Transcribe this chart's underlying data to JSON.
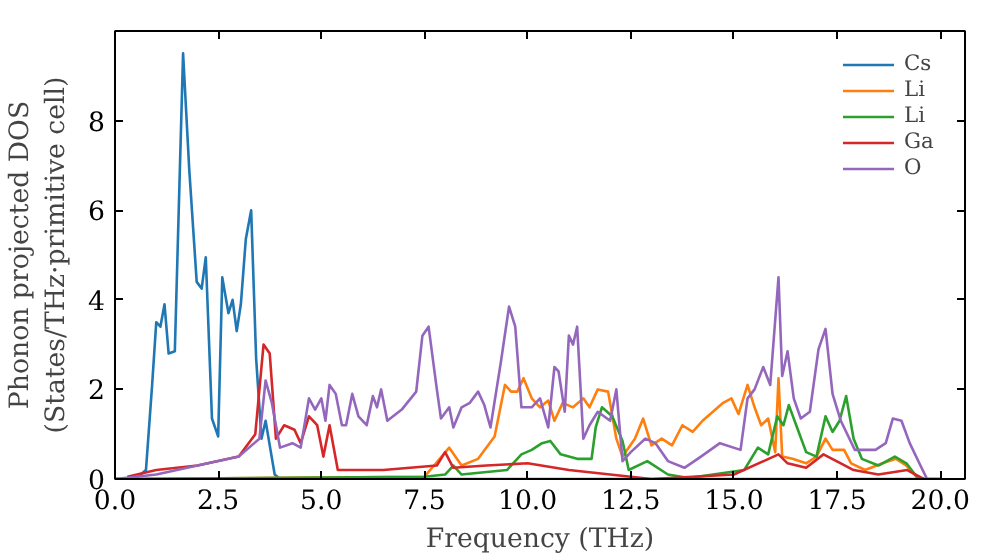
{
  "chart_data": {
    "type": "line",
    "xlabel": "Frequency (THz)",
    "ylabel": "Phonon projected DOS\n(States/THz·primitive cell)",
    "xlim": [
      0,
      20.6
    ],
    "ylim": [
      0,
      10
    ],
    "xticks": [
      {
        "value": 0,
        "label": "0.0"
      },
      2.5,
      {
        "value": 5,
        "label": "5.0"
      },
      7.5,
      {
        "value": 10,
        "label": "10.0"
      },
      12.5,
      {
        "value": 15,
        "label": "15.0"
      },
      17.5,
      {
        "value": 20,
        "label": "20.0"
      }
    ],
    "yticks": [
      0,
      2,
      4,
      6,
      8
    ],
    "grid": false,
    "legend": "top right",
    "marker": "none",
    "line_style": "solid",
    "series": [
      {
        "name": "Cs",
        "color": "#1f77b4",
        "x": [
          0,
          0.5,
          0.75,
          0.9,
          1.0,
          1.1,
          1.2,
          1.3,
          1.45,
          1.65,
          1.8,
          1.98,
          2.1,
          2.2,
          2.35,
          2.5,
          2.6,
          2.75,
          2.85,
          2.95,
          3.05,
          3.17,
          3.3,
          3.42,
          3.55,
          3.65,
          3.75,
          3.87,
          4.0,
          20
        ],
        "values": [
          0,
          0,
          0.2,
          2.1,
          3.5,
          3.4,
          3.9,
          2.8,
          2.85,
          9.5,
          6.9,
          4.4,
          4.25,
          4.95,
          1.35,
          0.95,
          4.5,
          3.7,
          4.0,
          3.3,
          3.9,
          5.35,
          6.0,
          2.7,
          0.9,
          1.3,
          0.75,
          0.1,
          0,
          0
        ]
      },
      {
        "name": "Li",
        "color": "#ff7f0e",
        "x": [
          0,
          7.5,
          8.1,
          8.4,
          8.8,
          9.2,
          9.45,
          9.6,
          9.75,
          9.9,
          10.1,
          10.3,
          10.5,
          10.65,
          10.85,
          11.1,
          11.35,
          11.5,
          11.7,
          11.95,
          12.15,
          12.3,
          12.6,
          12.8,
          13.0,
          13.25,
          13.5,
          13.75,
          14.0,
          14.24,
          14.49,
          14.74,
          14.94,
          15.11,
          15.33,
          15.5,
          15.66,
          15.83,
          16.0,
          16.08,
          16.17,
          16.42,
          16.75,
          17.0,
          17.22,
          17.39,
          17.67,
          17.84,
          18.18,
          18.6,
          18.93,
          19.18,
          19.43,
          19.6,
          20
        ],
        "values": [
          0,
          0.05,
          0.7,
          0.3,
          0.45,
          0.95,
          2.1,
          1.95,
          1.95,
          2.25,
          1.8,
          1.6,
          1.75,
          1.3,
          1.7,
          1.6,
          1.8,
          1.6,
          2.0,
          1.95,
          0.9,
          0.5,
          0.9,
          1.35,
          0.75,
          0.9,
          0.75,
          1.2,
          1.05,
          1.3,
          1.5,
          1.7,
          1.8,
          1.45,
          2.1,
          1.6,
          1.2,
          1.35,
          0.6,
          2.25,
          0.5,
          0.45,
          0.35,
          0.5,
          0.9,
          0.65,
          0.65,
          0.35,
          0.2,
          0.35,
          0.45,
          0.3,
          0.05,
          0,
          0
        ]
      },
      {
        "name": "Li",
        "color": "#2ca02c",
        "x": [
          0,
          7.5,
          8.0,
          8.2,
          8.4,
          9.5,
          9.85,
          10.1,
          10.35,
          10.55,
          10.8,
          11.2,
          11.55,
          11.65,
          11.8,
          12.05,
          12.3,
          12.45,
          12.9,
          13.4,
          13.9,
          15.25,
          15.58,
          15.83,
          16.05,
          16.2,
          16.33,
          16.55,
          16.75,
          17.0,
          17.22,
          17.39,
          17.56,
          17.72,
          17.9,
          18.1,
          18.5,
          18.9,
          19.18,
          19.43,
          19.6,
          20
        ],
        "values": [
          0,
          0.05,
          0.1,
          0.3,
          0.1,
          0.2,
          0.55,
          0.65,
          0.8,
          0.85,
          0.55,
          0.45,
          0.45,
          1.15,
          1.6,
          1.4,
          0.85,
          0.2,
          0.4,
          0.1,
          0.02,
          0.2,
          0.7,
          0.55,
          1.4,
          1.2,
          1.65,
          1.1,
          0.6,
          0.5,
          1.4,
          1.05,
          1.3,
          1.85,
          0.9,
          0.45,
          0.3,
          0.5,
          0.35,
          0.05,
          0,
          0
        ]
      },
      {
        "name": "Ga",
        "color": "#d62728",
        "x": [
          0.3,
          1.0,
          2.0,
          3.0,
          3.4,
          3.6,
          3.75,
          3.9,
          4.1,
          4.35,
          4.5,
          4.7,
          4.9,
          5.05,
          5.2,
          5.4,
          6.5,
          7.8,
          8.0,
          8.2,
          9.0,
          10.0,
          11.0,
          12.0,
          13.0,
          15.0,
          16.08,
          16.3,
          16.75,
          17.17,
          17.59,
          17.9,
          18.5,
          19.2,
          19.6
        ],
        "values": [
          0.05,
          0.2,
          0.3,
          0.5,
          1.0,
          3.0,
          2.8,
          0.9,
          1.2,
          1.1,
          0.8,
          1.4,
          1.2,
          0.5,
          1.2,
          0.2,
          0.2,
          0.3,
          0.6,
          0.25,
          0.3,
          0.35,
          0.2,
          0.1,
          0,
          0.1,
          0.55,
          0.35,
          0.25,
          0.55,
          0.35,
          0.2,
          0.1,
          0.2,
          0
        ]
      },
      {
        "name": "O",
        "color": "#9467bd",
        "x": [
          0,
          1.0,
          2.0,
          3.0,
          3.5,
          3.65,
          3.8,
          4.0,
          4.3,
          4.5,
          4.7,
          4.85,
          5.0,
          5.1,
          5.2,
          5.35,
          5.5,
          5.6,
          5.75,
          5.9,
          6.1,
          6.25,
          6.35,
          6.45,
          6.6,
          6.95,
          7.3,
          7.45,
          7.6,
          7.8,
          7.9,
          8.1,
          8.2,
          8.4,
          8.6,
          8.8,
          8.95,
          9.1,
          9.35,
          9.55,
          9.7,
          9.85,
          10.1,
          10.3,
          10.5,
          10.65,
          10.75,
          10.9,
          11.0,
          11.1,
          11.2,
          11.35,
          11.5,
          11.7,
          12.0,
          12.15,
          12.3,
          12.5,
          12.85,
          13.1,
          13.4,
          13.8,
          14.2,
          14.66,
          15.16,
          15.33,
          15.5,
          15.71,
          15.88,
          16.08,
          16.17,
          16.3,
          16.45,
          16.62,
          16.84,
          17.05,
          17.22,
          17.39,
          17.59,
          17.93,
          18.43,
          18.68,
          18.85,
          19.06,
          19.26,
          19.52,
          19.68
        ],
        "values": [
          0,
          0.1,
          0.3,
          0.5,
          0.9,
          2.2,
          1.7,
          0.7,
          0.8,
          0.7,
          1.8,
          1.55,
          1.8,
          1.3,
          2.1,
          1.9,
          1.2,
          1.2,
          1.9,
          1.4,
          1.2,
          1.85,
          1.6,
          2.0,
          1.3,
          1.55,
          1.95,
          3.2,
          3.4,
          2.0,
          1.35,
          1.6,
          1.15,
          1.6,
          1.7,
          1.95,
          1.65,
          1.15,
          2.6,
          3.85,
          3.4,
          1.6,
          1.6,
          1.8,
          1.15,
          2.5,
          2.4,
          1.5,
          3.2,
          3.0,
          3.4,
          0.9,
          1.2,
          1.5,
          1.3,
          2.0,
          0.4,
          0.6,
          0.9,
          0.8,
          0.4,
          0.25,
          0.5,
          0.8,
          0.65,
          1.8,
          2.0,
          2.5,
          2.1,
          4.5,
          2.3,
          2.85,
          1.8,
          1.35,
          1.5,
          2.9,
          3.35,
          1.9,
          1.3,
          0.65,
          0.65,
          0.8,
          1.35,
          1.3,
          0.8,
          0.3,
          0
        ]
      }
    ]
  }
}
